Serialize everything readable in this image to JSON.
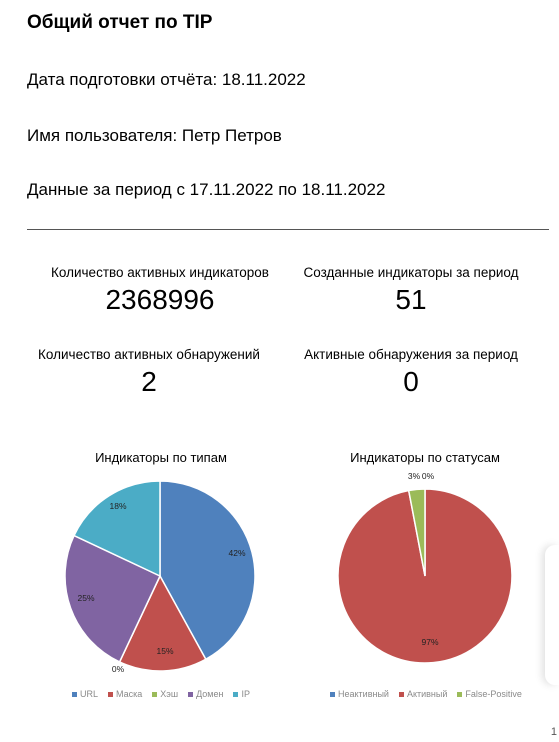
{
  "header": {
    "title": "Общий отчет по TIP",
    "date_line": "Дата подготовки отчёта: 18.11.2022",
    "user_line": "Имя пользователя: Петр Петров",
    "period_line": "Данные за период с 17.11.2022 по 18.11.2022"
  },
  "stats": [
    {
      "label": "Количество активных индикаторов",
      "value": "2368996"
    },
    {
      "label": "Созданные индикаторы за период",
      "value": "51"
    },
    {
      "label": "Количество активных обнаружений",
      "value": "2"
    },
    {
      "label": "Активные обнаружения за период",
      "value": "0"
    }
  ],
  "chart_data": [
    {
      "type": "pie",
      "title": "Индикаторы по типам",
      "categories": [
        "URL",
        "Маска",
        "Хэш",
        "Домен",
        "IP"
      ],
      "values": [
        42,
        15,
        0,
        25,
        18
      ],
      "labels": [
        "42%",
        "15%",
        "0%",
        "25%",
        "18%"
      ],
      "colors": [
        "#4f81bd",
        "#c0504d",
        "#9bbb59",
        "#8064a2",
        "#4bacc6"
      ],
      "legend": "bottom"
    },
    {
      "type": "pie",
      "title": "Индикаторы по статусам",
      "categories": [
        "Неактивный",
        "Активный",
        "False-Positive"
      ],
      "values": [
        0,
        97,
        3
      ],
      "labels": [
        "0%",
        "97%",
        "3%"
      ],
      "colors": [
        "#4f81bd",
        "#c0504d",
        "#9bbb59"
      ],
      "legend": "bottom"
    }
  ],
  "page_number": "1"
}
